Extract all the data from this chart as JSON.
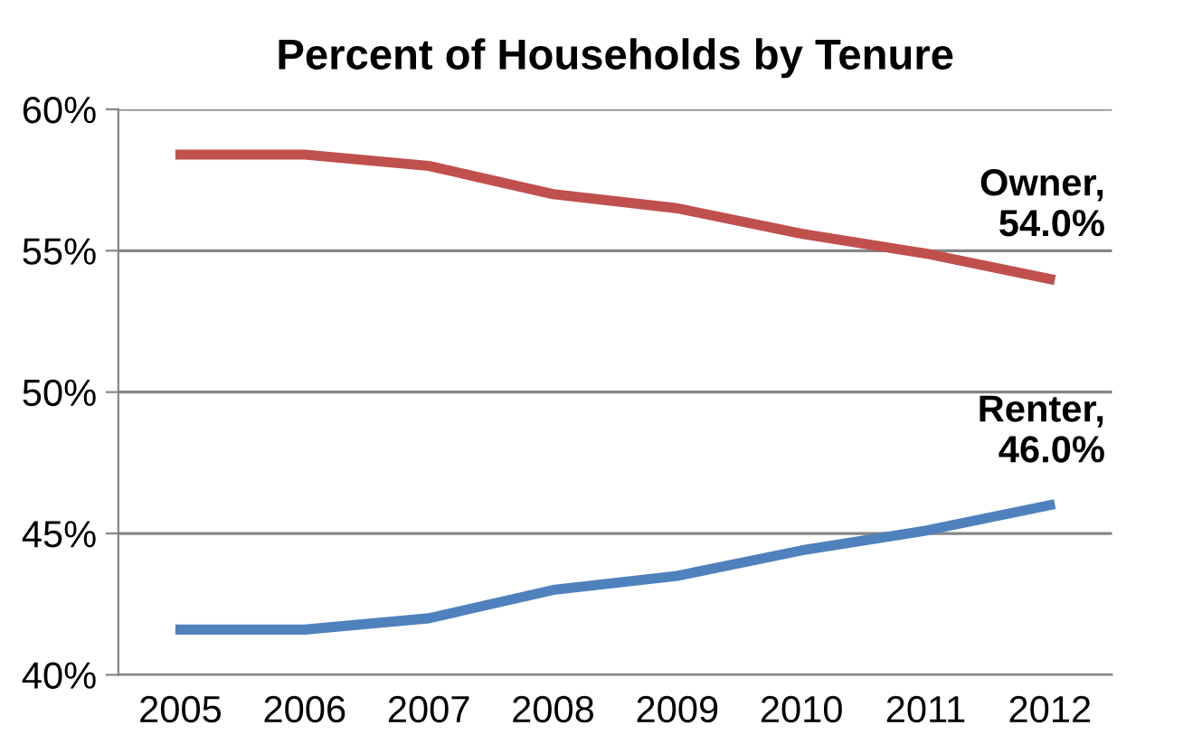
{
  "chart_data": {
    "type": "line",
    "title": "Percent of Households by Tenure",
    "categories": [
      "2005",
      "2006",
      "2007",
      "2008",
      "2009",
      "2010",
      "2011",
      "2012"
    ],
    "series": [
      {
        "color": "#c0504d",
        "values": [
          58.4,
          58.4,
          58.0,
          57.0,
          56.5,
          55.6,
          54.9,
          54.0
        ]
      },
      {
        "color": "#4f81bd",
        "values": [
          41.6,
          41.6,
          42.0,
          43.0,
          43.5,
          44.4,
          45.1,
          46.0
        ]
      }
    ],
    "ylim": [
      40,
      60
    ],
    "yticks": [
      {
        "value": 40,
        "label": "40%"
      },
      {
        "value": 45,
        "label": "45%"
      },
      {
        "value": 50,
        "label": "50%"
      },
      {
        "value": 55,
        "label": "55%"
      },
      {
        "value": 60,
        "label": "60%"
      }
    ],
    "grid": "y",
    "legend": false,
    "marker": "none",
    "line_style": "solid",
    "annotations": [
      {
        "text": "Owner,\n54.0%",
        "x": "2012",
        "y": 54.0
      },
      {
        "text": "Renter,\n46.0%",
        "x": "2012",
        "y": 46.0
      }
    ]
  }
}
